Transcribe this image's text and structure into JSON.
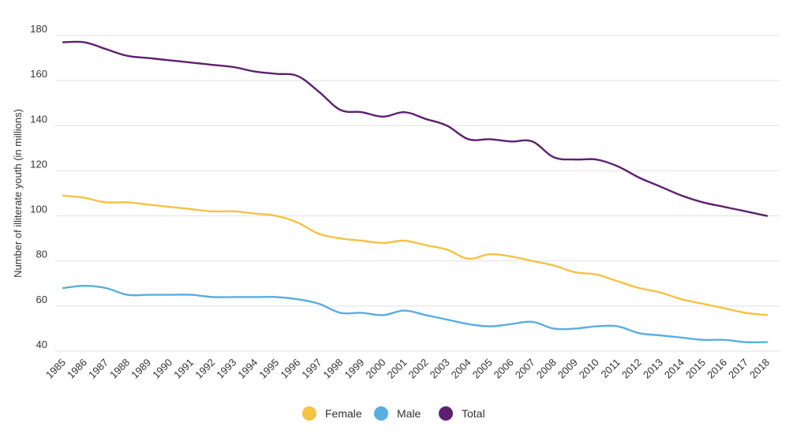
{
  "chart_data": {
    "type": "line",
    "ylabel": "Number of illiterate youth (in millions)",
    "xlabel": "",
    "ylim": [
      40,
      180
    ],
    "yticks": [
      40,
      60,
      80,
      100,
      120,
      140,
      160,
      180
    ],
    "grid": "horizontal",
    "legend_position": "bottom",
    "x": [
      "1985",
      "1986",
      "1987",
      "1988",
      "1989",
      "1990",
      "1991",
      "1992",
      "1993",
      "1994",
      "1995",
      "1996",
      "1997",
      "1998",
      "1999",
      "2000",
      "2001",
      "2002",
      "2003",
      "2004",
      "2005",
      "2006",
      "2007",
      "2008",
      "2009",
      "2010",
      "2011",
      "2012",
      "2013",
      "2014",
      "2015",
      "2016",
      "2017",
      "2018"
    ],
    "series": [
      {
        "name": "Female",
        "color": "#f5c242",
        "values": [
          109,
          108,
          106,
          106,
          105,
          104,
          103,
          102,
          102,
          101,
          100,
          97,
          92,
          90,
          89,
          88,
          89,
          87,
          85,
          81,
          83,
          82,
          80,
          78,
          75,
          74,
          71,
          68,
          66,
          63,
          61,
          59,
          57,
          56
        ]
      },
      {
        "name": "Male",
        "color": "#58aee0",
        "values": [
          68,
          69,
          68,
          65,
          65,
          65,
          65,
          64,
          64,
          64,
          64,
          63,
          61,
          57,
          57,
          56,
          58,
          56,
          54,
          52,
          51,
          52,
          53,
          50,
          50,
          51,
          51,
          48,
          47,
          46,
          45,
          45,
          44,
          44
        ]
      },
      {
        "name": "Total",
        "color": "#5e1f6f",
        "values": [
          177,
          177,
          174,
          171,
          170,
          169,
          168,
          167,
          166,
          164,
          163,
          162,
          155,
          147,
          146,
          144,
          146,
          143,
          140,
          134,
          134,
          133,
          133,
          126,
          125,
          125,
          122,
          117,
          113,
          109,
          106,
          104,
          102,
          100
        ]
      }
    ]
  }
}
